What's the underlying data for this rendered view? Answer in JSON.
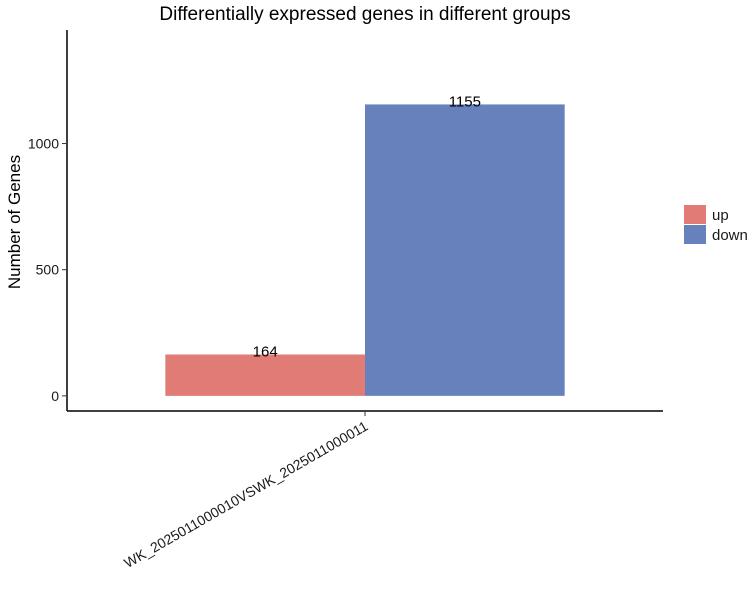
{
  "chart_data": {
    "type": "bar",
    "title": "Differentially expressed genes in different groups",
    "xlabel": "",
    "ylabel": "Number of Genes",
    "categories": [
      "WK_2025011000010VSWK_2025011000011"
    ],
    "series": [
      {
        "name": "up",
        "values": [
          164
        ],
        "color": "#E07B76"
      },
      {
        "name": "down",
        "values": [
          1155
        ],
        "color": "#6781BC"
      }
    ],
    "ylim": [
      -60,
      1450
    ],
    "yticks": [
      0,
      500,
      1000
    ],
    "grid": false,
    "legend_position": "right"
  }
}
